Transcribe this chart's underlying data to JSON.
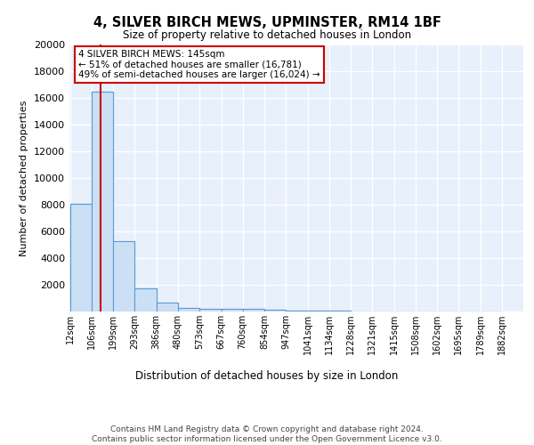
{
  "title": "4, SILVER BIRCH MEWS, UPMINSTER, RM14 1BF",
  "subtitle": "Size of property relative to detached houses in London",
  "xlabel": "Distribution of detached houses by size in London",
  "ylabel": "Number of detached properties",
  "bin_edges": [
    12,
    106,
    199,
    293,
    386,
    480,
    573,
    667,
    760,
    854,
    947,
    1041,
    1134,
    1228,
    1321,
    1415,
    1508,
    1602,
    1695,
    1789,
    1882
  ],
  "bar_heights": [
    8100,
    16500,
    5300,
    1750,
    700,
    300,
    220,
    180,
    170,
    120,
    80,
    60,
    40,
    30,
    20,
    15,
    10,
    8,
    5,
    4
  ],
  "bar_color": "#cce0f5",
  "bar_edge_color": "#5b9bd5",
  "bar_edge_width": 0.8,
  "red_line_x": 145,
  "red_line_color": "#cc0000",
  "annotation_text": "4 SILVER BIRCH MEWS: 145sqm\n← 51% of detached houses are smaller (16,781)\n49% of semi-detached houses are larger (16,024) →",
  "annotation_box_color": "#ffffff",
  "annotation_box_edge": "#cc0000",
  "ylim": [
    0,
    20000
  ],
  "yticks": [
    0,
    2000,
    4000,
    6000,
    8000,
    10000,
    12000,
    14000,
    16000,
    18000,
    20000
  ],
  "background_color": "#e8f0fb",
  "grid_color": "#ffffff",
  "footer_text": "Contains HM Land Registry data © Crown copyright and database right 2024.\nContains public sector information licensed under the Open Government Licence v3.0.",
  "tick_labels": [
    "12sqm",
    "106sqm",
    "199sqm",
    "293sqm",
    "386sqm",
    "480sqm",
    "573sqm",
    "667sqm",
    "760sqm",
    "854sqm",
    "947sqm",
    "1041sqm",
    "1134sqm",
    "1228sqm",
    "1321sqm",
    "1415sqm",
    "1508sqm",
    "1602sqm",
    "1695sqm",
    "1789sqm",
    "1882sqm"
  ]
}
